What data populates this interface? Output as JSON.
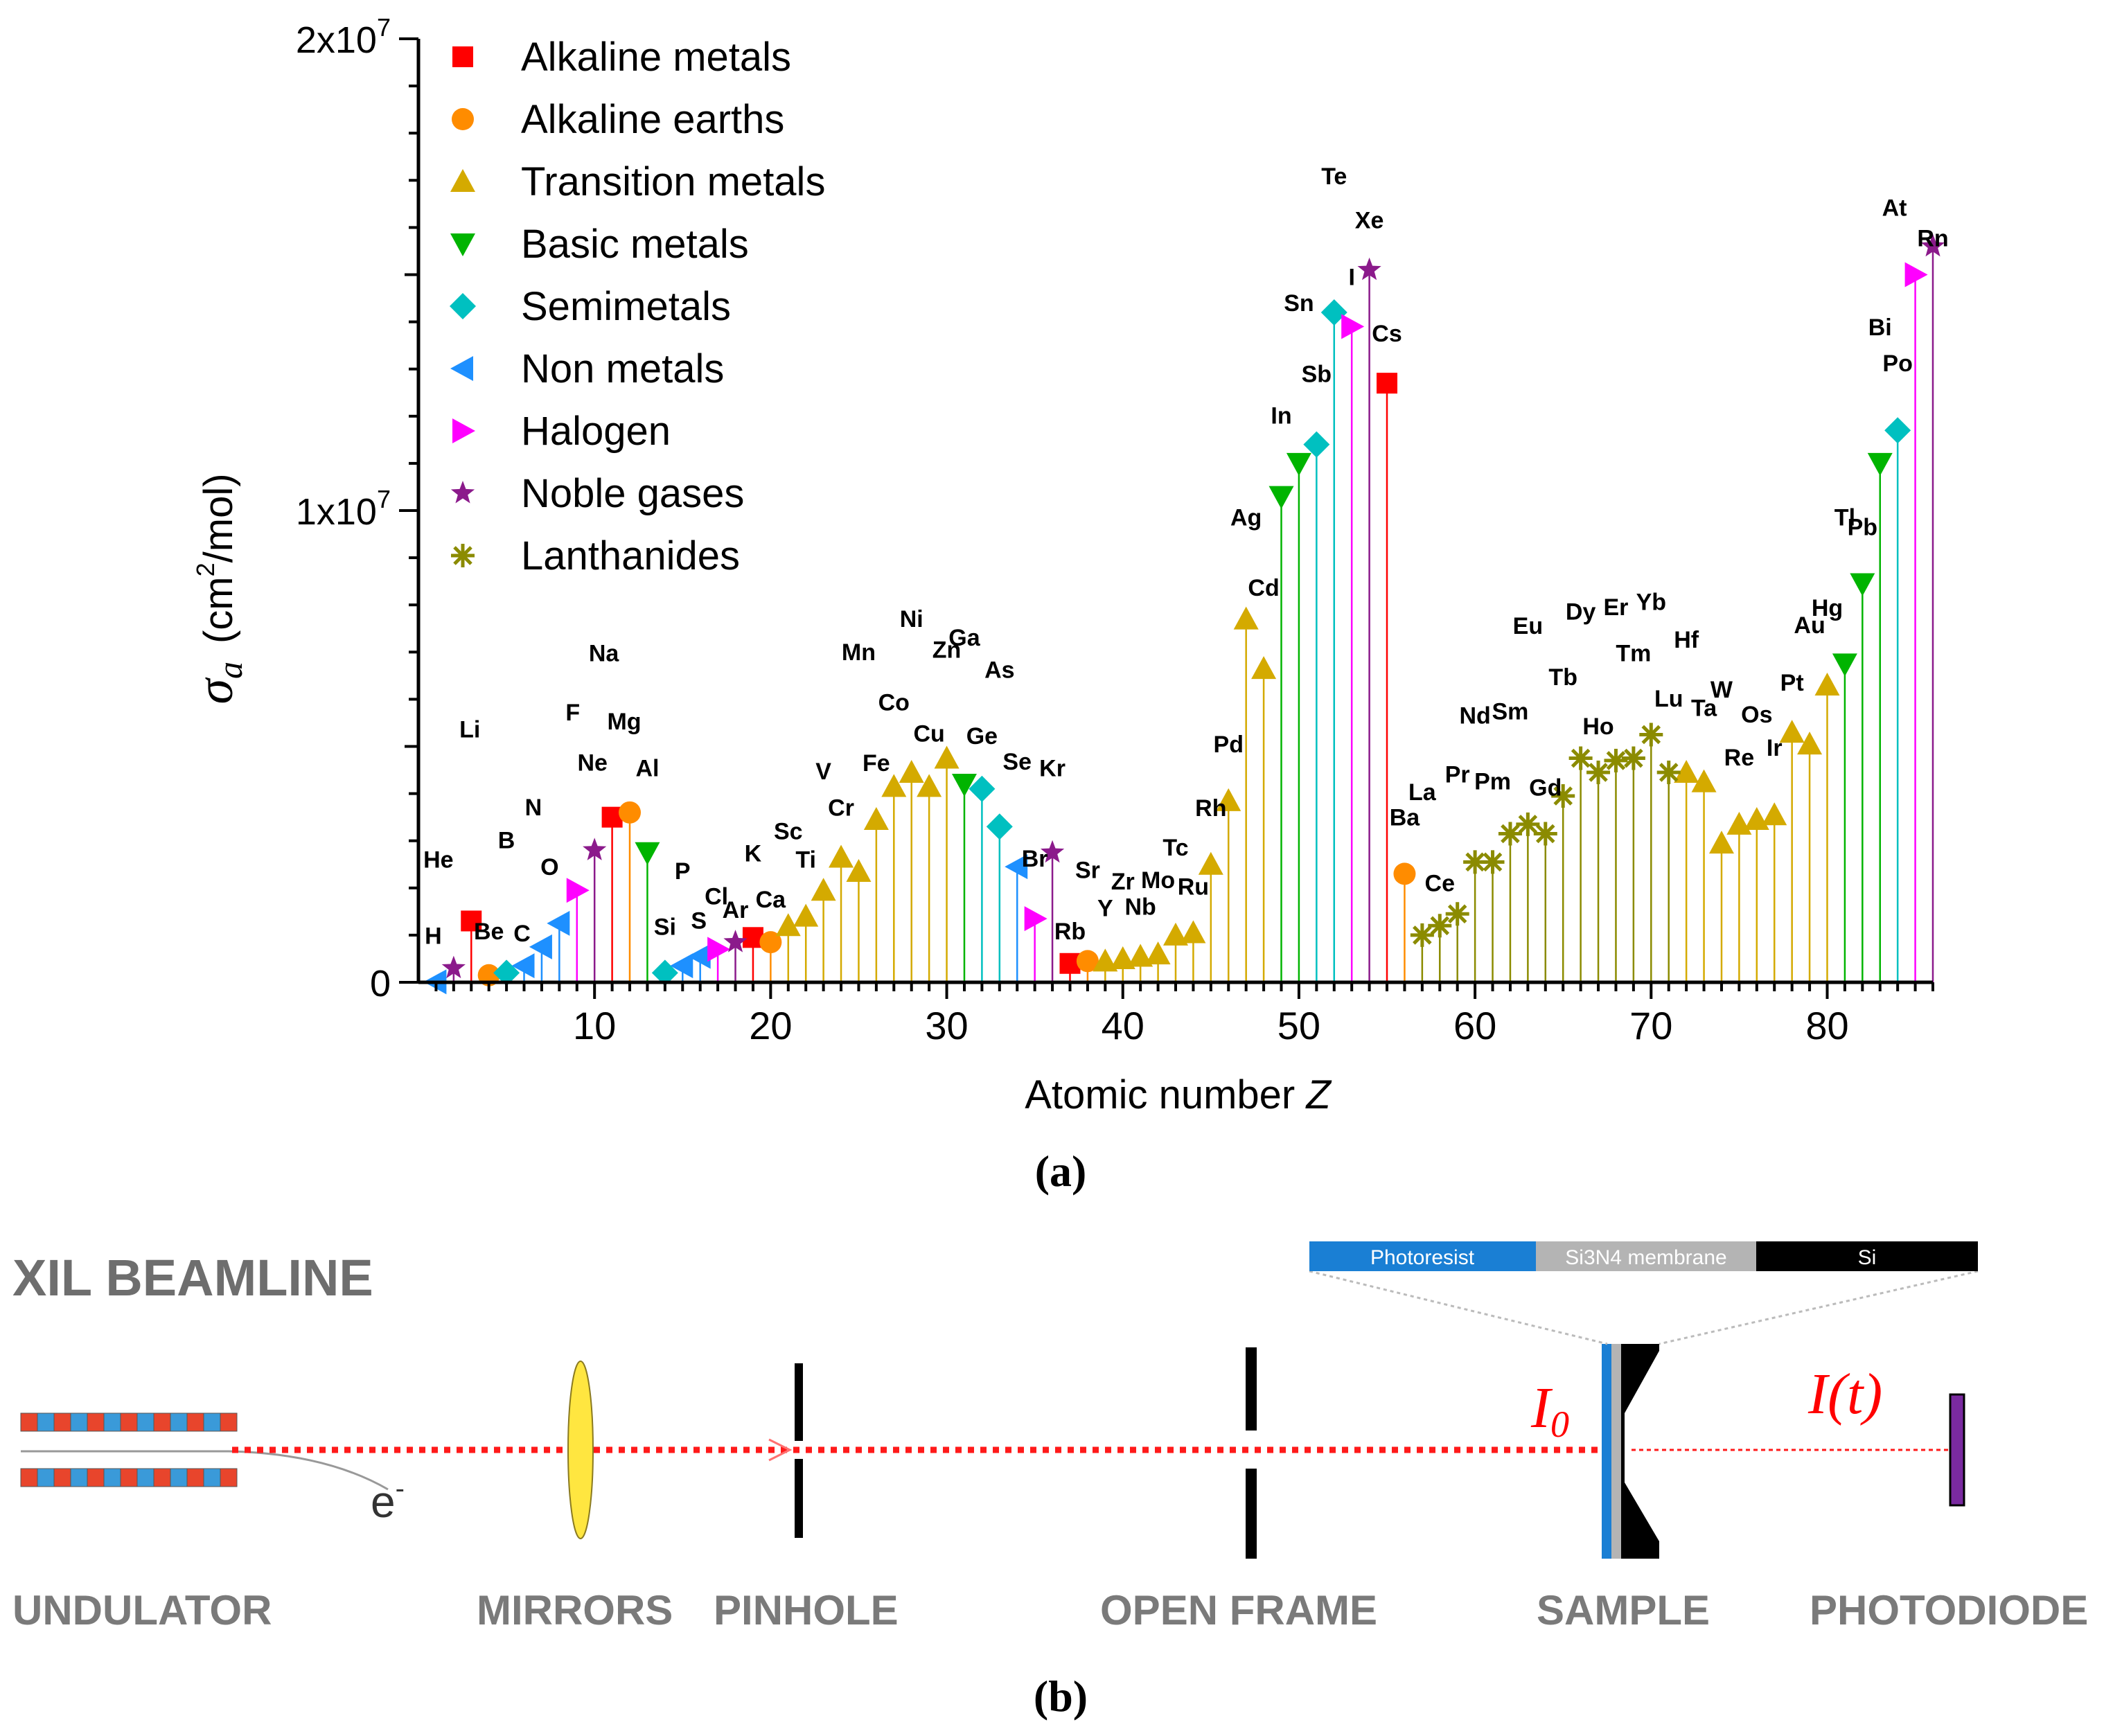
{
  "chart_data": {
    "type": "scatter",
    "style": "stem plot",
    "ylabel": "σ_a (cm²/mol)",
    "xlabel": "Atomic number Z",
    "xlim": [
      0,
      86
    ],
    "ylim": [
      0,
      20000000
    ],
    "x_ticks": [
      10,
      20,
      30,
      40,
      50,
      60,
      70,
      80
    ],
    "y_ticks": [
      {
        "value": 0,
        "label": "0"
      },
      {
        "value": 10000000,
        "label": "1x10⁷"
      },
      {
        "value": 20000000,
        "label": "2x10⁷"
      }
    ],
    "legend_position": "top-left",
    "grid": false,
    "series": [
      {
        "name": "Alkaline metals",
        "marker": "square",
        "color": "#ff0000",
        "points": [
          [
            3,
            "Li",
            1300000
          ],
          [
            11,
            "Na",
            3500000
          ],
          [
            19,
            "K",
            950000
          ],
          [
            37,
            "Rb",
            400000
          ],
          [
            55,
            "Cs",
            12700000
          ]
        ]
      },
      {
        "name": "Alkaline earths",
        "marker": "circle",
        "color": "#ff8c00",
        "points": [
          [
            4,
            "Be",
            150000
          ],
          [
            12,
            "Mg",
            3600000
          ],
          [
            20,
            "Ca",
            850000
          ],
          [
            38,
            "Sr",
            450000
          ],
          [
            56,
            "Ba",
            2300000
          ]
        ]
      },
      {
        "name": "Transition metals",
        "marker": "triangle-up",
        "color": "#d4aa00",
        "points": [
          [
            21,
            "Sc",
            1200000
          ],
          [
            22,
            "Ti",
            1400000
          ],
          [
            23,
            "V",
            1950000
          ],
          [
            24,
            "Cr",
            2650000
          ],
          [
            25,
            "Mn",
            2350000
          ],
          [
            26,
            "Fe",
            3450000
          ],
          [
            27,
            "Co",
            4150000
          ],
          [
            28,
            "Ni",
            4450000
          ],
          [
            29,
            "Cu",
            4150000
          ],
          [
            30,
            "Zn",
            4750000
          ],
          [
            39,
            "Y",
            450000
          ],
          [
            40,
            "Zr",
            500000
          ],
          [
            41,
            "Nb",
            550000
          ],
          [
            42,
            "Mo",
            600000
          ],
          [
            43,
            "Tc",
            1000000
          ],
          [
            44,
            "Ru",
            1050000
          ],
          [
            45,
            "Rh",
            2500000
          ],
          [
            46,
            "Pd",
            3850000
          ],
          [
            47,
            "Ag",
            7700000
          ],
          [
            48,
            "Cd",
            6650000
          ],
          [
            72,
            "Hf",
            4450000
          ],
          [
            73,
            "Ta",
            4250000
          ],
          [
            74,
            "W",
            2950000
          ],
          [
            75,
            "Re",
            3350000
          ],
          [
            76,
            "Os",
            3450000
          ],
          [
            77,
            "Ir",
            3550000
          ],
          [
            78,
            "Pt",
            5300000
          ],
          [
            79,
            "Au",
            5050000
          ],
          [
            80,
            "Hg",
            6300000
          ]
        ]
      },
      {
        "name": "Basic metals",
        "marker": "triangle-down",
        "color": "#00b400",
        "points": [
          [
            13,
            "Al",
            2750000
          ],
          [
            31,
            "Ga",
            4200000
          ],
          [
            49,
            "In",
            10300000
          ],
          [
            50,
            "Sn",
            11000000
          ],
          [
            81,
            "Tl",
            6750000
          ],
          [
            82,
            "Pb",
            8450000
          ],
          [
            83,
            "Bi",
            11000000
          ]
        ]
      },
      {
        "name": "Semimetals",
        "marker": "diamond",
        "color": "#00c0c0",
        "points": [
          [
            5,
            "B",
            200000
          ],
          [
            14,
            "Si",
            200000
          ],
          [
            32,
            "Ge",
            4100000
          ],
          [
            33,
            "As",
            3300000
          ],
          [
            51,
            "Sb",
            11400000
          ],
          [
            52,
            "Te",
            14200000
          ],
          [
            84,
            "Po",
            11700000
          ]
        ]
      },
      {
        "name": "Non metals",
        "marker": "triangle-left",
        "color": "#1e90ff",
        "points": [
          [
            1,
            "H",
            10000
          ],
          [
            6,
            "C",
            350000
          ],
          [
            7,
            "N",
            750000
          ],
          [
            8,
            "O",
            1250000
          ],
          [
            15,
            "P",
            350000
          ],
          [
            16,
            "S",
            550000
          ],
          [
            34,
            "Se",
            2450000
          ]
        ]
      },
      {
        "name": "Halogen",
        "marker": "triangle-right",
        "color": "#ff00ff",
        "points": [
          [
            9,
            "F",
            1950000
          ],
          [
            17,
            "Cl",
            700000
          ],
          [
            35,
            "Br",
            1350000
          ],
          [
            53,
            "I",
            13900000
          ],
          [
            85,
            "At",
            15000000
          ]
        ]
      },
      {
        "name": "Noble gases",
        "marker": "star",
        "color": "#8b1a8b",
        "points": [
          [
            2,
            "He",
            300000
          ],
          [
            10,
            "Ne",
            2800000
          ],
          [
            18,
            "Ar",
            850000
          ],
          [
            36,
            "Kr",
            2750000
          ],
          [
            54,
            "Xe",
            15100000
          ],
          [
            86,
            "Rn",
            15600000
          ]
        ]
      },
      {
        "name": "Lanthanides",
        "marker": "asterisk",
        "color": "#8b8b00",
        "points": [
          [
            57,
            "La",
            1000000
          ],
          [
            58,
            "Ce",
            1200000
          ],
          [
            59,
            "Pr",
            1450000
          ],
          [
            60,
            "Nd",
            2550000
          ],
          [
            61,
            "Pm",
            2550000
          ],
          [
            62,
            "Sm",
            3150000
          ],
          [
            63,
            "Eu",
            3350000
          ],
          [
            64,
            "Gd",
            3150000
          ],
          [
            65,
            "Tb",
            3950000
          ],
          [
            66,
            "Dy",
            4750000
          ],
          [
            67,
            "Ho",
            4450000
          ],
          [
            68,
            "Er",
            4700000
          ],
          [
            69,
            "Tm",
            4750000
          ],
          [
            70,
            "Yb",
            5250000
          ],
          [
            71,
            "Lu",
            4450000
          ]
        ]
      }
    ]
  },
  "panel_a_caption": "(a)",
  "panel_b_caption": "(b)",
  "beamline": {
    "title": "XIL BEAMLINE",
    "components": [
      "UNDULATOR",
      "MIRRORS",
      "PINHOLE",
      "OPEN FRAME",
      "SAMPLE",
      "PHOTODIODE"
    ],
    "electron_label": "e⁻",
    "i0_label": "I",
    "i0_subscript": "0",
    "it_label": "I(t)",
    "layers": [
      "Photoresist",
      "Si3N4 membrane",
      "Si"
    ],
    "colors": {
      "beam": "#ff1a1a",
      "mirror": "#ffe640",
      "photoresist": "#1a7fd4",
      "membrane": "#b4b4b4",
      "si": "#000000",
      "photodiode": "#7a2aa0"
    }
  }
}
